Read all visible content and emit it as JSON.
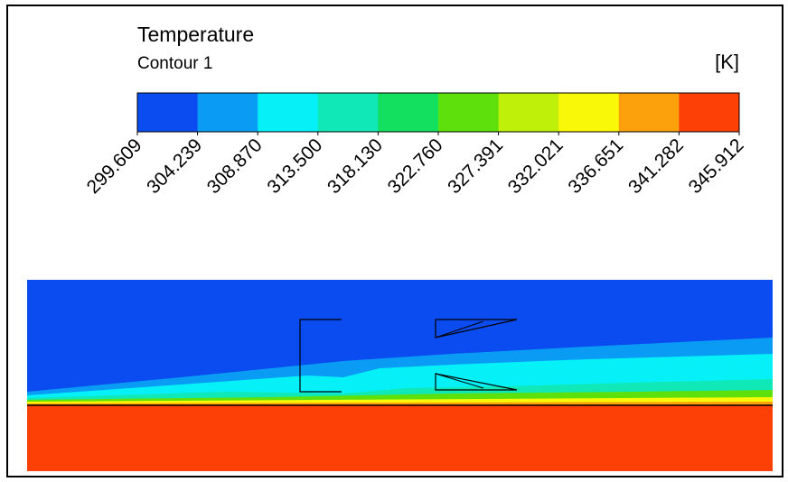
{
  "legend": {
    "title": "Temperature",
    "subtitle": "Contour 1",
    "unit": "[K]",
    "colors": [
      "#0a4cf0",
      "#0a9cf5",
      "#06f0f8",
      "#10e8b8",
      "#14e060",
      "#5ee00c",
      "#bef00a",
      "#f8f808",
      "#fca00c",
      "#fc4006"
    ],
    "labels": [
      "299.609",
      "304.239",
      "308.870",
      "313.500",
      "318.130",
      "322.760",
      "327.391",
      "332.021",
      "336.651",
      "341.282",
      "345.912"
    ]
  }
}
